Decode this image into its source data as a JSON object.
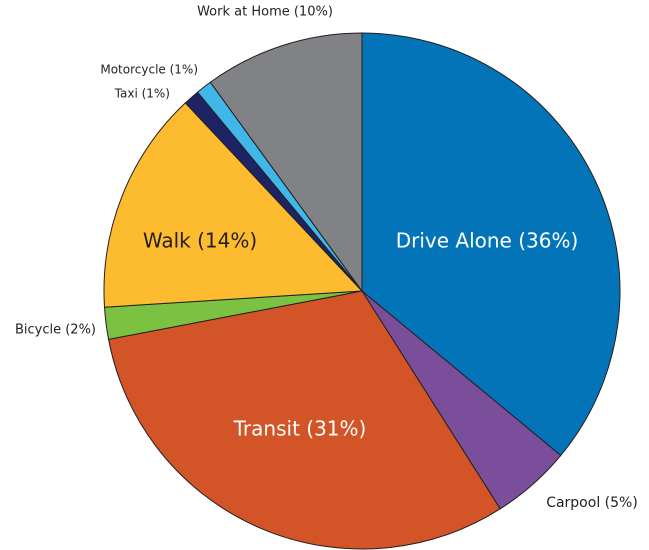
{
  "chart_data": {
    "type": "pie",
    "categories": [
      "Drive Alone (36%)",
      "Carpool (5%)",
      "Transit (31%)",
      "Bicycle (2%)",
      "Walk (14%)",
      "Taxi (1%)",
      "Motorcycle (1%)",
      "Work at Home (10%)"
    ],
    "values": [
      36,
      5,
      31,
      2,
      14,
      1,
      1,
      10
    ],
    "colors": [
      "#0474b9",
      "#7b4e9c",
      "#d35427",
      "#7cc242",
      "#fdbb2f",
      "#1e2366",
      "#3fb7e8",
      "#808285"
    ]
  }
}
